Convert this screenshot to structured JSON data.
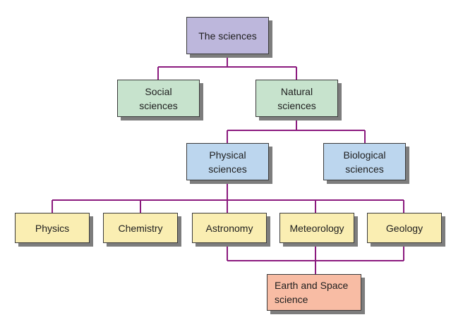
{
  "diagram": {
    "colors": {
      "connector": "#8b1a7e",
      "root": "#bdb7dc",
      "branch": "#c7e3cd",
      "subbranch": "#bcd6ee",
      "leaf": "#faeeb2",
      "highlight": "#f8bca4",
      "shadow": "#7d7d7d"
    },
    "nodes": {
      "root": "The sciences",
      "social": "Social\nsciences",
      "natural": "Natural\nsciences",
      "physical": "Physical\nsciences",
      "biological": "Biological\nsciences",
      "physics": "Physics",
      "chemistry": "Chemistry",
      "astronomy": "Astronomy",
      "meteorology": "Meteorology",
      "geology": "Geology",
      "earth_space": "Earth and Space\nscience"
    }
  }
}
